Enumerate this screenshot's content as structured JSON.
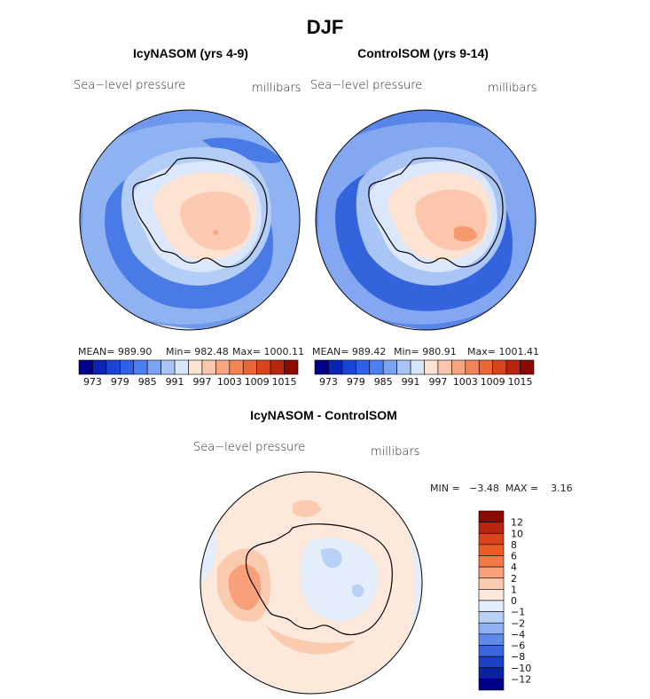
{
  "page_title": "DJF",
  "panels": {
    "left": {
      "title": "IcyNASOM (yrs 4-9)",
      "variable": "Sea−level pressure",
      "units": "millibars",
      "mean_label": "MEAN= 989.90",
      "min_label": "Min= 982.48",
      "max_label": "Max= 1000.11"
    },
    "right": {
      "title": "ControlSOM (yrs 9-14)",
      "variable": "Sea−level pressure",
      "units": "millibars",
      "mean_label": "MEAN= 989.42",
      "min_label": "Min= 980.91",
      "max_label": "Max= 1001.41"
    },
    "diff": {
      "title": "IcyNASOM - ControlSOM",
      "variable": "Sea−level pressure",
      "units": "millibars",
      "minmax_label": "MIN =   −3.48  MAX =    3.16"
    }
  },
  "chart_data": [
    {
      "type": "heatmap",
      "title": "IcyNASOM (yrs 4-9)",
      "variable": "Sea-level pressure",
      "units": "millibars",
      "mean": 989.9,
      "min": 982.48,
      "max": 1000.11,
      "colorbar_ticks": [
        "973",
        "979",
        "985",
        "991",
        "997",
        "1003",
        "1009",
        "1015"
      ],
      "colorbar_colors": [
        "#00008b",
        "#0a24b5",
        "#1a44d6",
        "#2f60e8",
        "#4c7ff0",
        "#7aa3f3",
        "#a9c4f6",
        "#d8e6fa",
        "#fde3d4",
        "#fbc6ad",
        "#f8a57f",
        "#f48456",
        "#ec6535",
        "#d9441d",
        "#b8260f",
        "#8b0a00"
      ]
    },
    {
      "type": "heatmap",
      "title": "ControlSOM (yrs 9-14)",
      "variable": "Sea-level pressure",
      "units": "millibars",
      "mean": 989.42,
      "min": 980.91,
      "max": 1001.41,
      "colorbar_ticks": [
        "973",
        "979",
        "985",
        "991",
        "997",
        "1003",
        "1009",
        "1015"
      ],
      "colorbar_colors": [
        "#00008b",
        "#0a24b5",
        "#1a44d6",
        "#2f60e8",
        "#4c7ff0",
        "#7aa3f3",
        "#a9c4f6",
        "#d8e6fa",
        "#fde3d4",
        "#fbc6ad",
        "#f8a57f",
        "#f48456",
        "#ec6535",
        "#d9441d",
        "#b8260f",
        "#8b0a00"
      ]
    },
    {
      "type": "heatmap",
      "title": "IcyNASOM - ControlSOM",
      "variable": "Sea-level pressure",
      "units": "millibars",
      "min": -3.48,
      "max": 3.16,
      "colorbar_ticks": [
        "12",
        "10",
        "8",
        "6",
        "4",
        "2",
        "1",
        "0",
        "−1",
        "−2",
        "−4",
        "−6",
        "−8",
        "−10",
        "−12"
      ],
      "colorbar_colors": [
        "#8b0a00",
        "#b8260f",
        "#d9441d",
        "#ec5a28",
        "#f27a48",
        "#f7a07a",
        "#fbcbb0",
        "#fde9dc",
        "#e4eefb",
        "#b9d0f7",
        "#8db1f2",
        "#5f8aec",
        "#3a67e0",
        "#1d3fc4",
        "#0b22a0",
        "#00008b"
      ]
    }
  ],
  "colors": {
    "left_map": {
      "ocean_far": "#6f98ec",
      "ocean_mid": "#8fb2f2",
      "ocean_near": "#b3cdf7",
      "trough": "#4a7ae6",
      "coast_band": "#dbe7fb",
      "land_low": "#fde3d4",
      "land_mid": "#fbcab1",
      "land_high": "#f8a683"
    },
    "right_map": {
      "ocean_far": "#5985e8",
      "ocean_mid": "#83a8f1",
      "ocean_near": "#a9c5f5",
      "trough": "#3463de",
      "coast_band": "#dbe7fb",
      "land_low": "#fde3d4",
      "land_mid": "#fbc6ab",
      "land_high": "#f59a6f"
    },
    "diff_map": {
      "base": "#fde9dc",
      "pos1": "#fbcbb0",
      "pos2": "#f7a07a",
      "neg1": "#e4eefb",
      "neg2": "#b9d0f7"
    }
  }
}
